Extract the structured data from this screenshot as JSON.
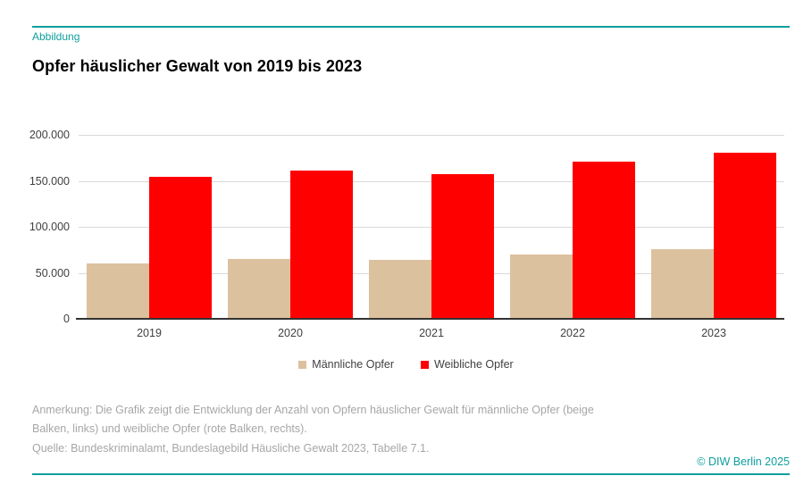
{
  "header": {
    "kicker": "Abbildung",
    "title": "Opfer häuslicher Gewalt von 2019 bis 2023"
  },
  "chart_data": {
    "type": "bar",
    "title": "Opfer häuslicher Gewalt von 2019 bis 2023",
    "categories": [
      "2019",
      "2020",
      "2021",
      "2022",
      "2023"
    ],
    "series": [
      {
        "name": "Männliche Opfer",
        "color": "#dcc19e",
        "values": [
          60000,
          65000,
          64500,
          69500,
          75600
        ]
      },
      {
        "name": "Weibliche Opfer",
        "color": "#fe0000",
        "values": [
          154000,
          161000,
          157500,
          171000,
          181000
        ]
      }
    ],
    "ylim": [
      0,
      200000
    ],
    "yticks": [
      {
        "value": 0,
        "label": "0"
      },
      {
        "value": 50000,
        "label": "50.000"
      },
      {
        "value": 100000,
        "label": "100.000"
      },
      {
        "value": 150000,
        "label": "150.000"
      },
      {
        "value": 200000,
        "label": "200.000"
      }
    ],
    "grid": true,
    "legend_position": "bottom"
  },
  "footer": {
    "note": "Anmerkung: Die Grafik zeigt die Entwicklung der Anzahl von Opfern häuslicher Gewalt für männliche Opfer (beige Balken, links) und weibliche Opfer (rote Balken, rechts).",
    "source": "Quelle: Bundeskriminalamt, Bundeslagebild Häusliche Gewalt 2023, Tabelle 7.1.",
    "copyright": "© DIW Berlin 2025"
  },
  "colors": {
    "accent_teal": "#0f9e9e",
    "male_beige": "#dcc19e",
    "female_red": "#fe0000",
    "grid_gray": "#d9d9d9",
    "axis_dark": "#333333",
    "text_dark": "#404040",
    "note_gray": "#a6a6a6"
  }
}
